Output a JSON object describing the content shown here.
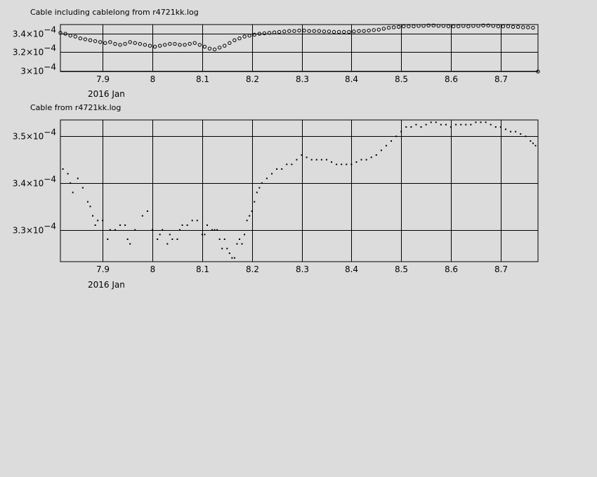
{
  "chart_data": [
    {
      "type": "scatter",
      "title": "Cable including cablelong from r4721kk.log",
      "xlabel": "2016 Jan",
      "ylabel": "",
      "xlim": [
        7.815,
        8.775
      ],
      "ylim": [
        0.000299,
        0.00035
      ],
      "grid": true,
      "x_ticks": [
        {
          "value": 7.9,
          "label": "7.9"
        },
        {
          "value": 8.0,
          "label": "8"
        },
        {
          "value": 8.1,
          "label": "8.1"
        },
        {
          "value": 8.2,
          "label": "8.2"
        },
        {
          "value": 8.3,
          "label": "8.3"
        },
        {
          "value": 8.4,
          "label": "8.4"
        },
        {
          "value": 8.5,
          "label": "8.5"
        },
        {
          "value": 8.6,
          "label": "8.6"
        },
        {
          "value": 8.7,
          "label": "8.7"
        }
      ],
      "y_ticks": [
        {
          "value": 0.0003,
          "mantissa": "3×10",
          "exponent": "−4"
        },
        {
          "value": 0.00032,
          "mantissa": "3.2×10",
          "exponent": "−4"
        },
        {
          "value": 0.00034,
          "mantissa": "3.4×10",
          "exponent": "−4"
        }
      ],
      "series": [
        {
          "marker": "open-circle",
          "points": [
            [
              7.815,
              0.000341
            ],
            [
              7.825,
              0.00034
            ],
            [
              7.835,
              0.000338
            ],
            [
              7.845,
              0.000337
            ],
            [
              7.855,
              0.000335
            ],
            [
              7.865,
              0.000334
            ],
            [
              7.875,
              0.000333
            ],
            [
              7.885,
              0.000332
            ],
            [
              7.895,
              0.000331
            ],
            [
              7.905,
              0.00033
            ],
            [
              7.915,
              0.000331
            ],
            [
              7.925,
              0.000329
            ],
            [
              7.935,
              0.000328
            ],
            [
              7.945,
              0.000329
            ],
            [
              7.955,
              0.000331
            ],
            [
              7.965,
              0.00033
            ],
            [
              7.975,
              0.000329
            ],
            [
              7.985,
              0.000328
            ],
            [
              7.995,
              0.000327
            ],
            [
              8.005,
              0.000326
            ],
            [
              8.015,
              0.000327
            ],
            [
              8.025,
              0.000328
            ],
            [
              8.035,
              0.000329
            ],
            [
              8.045,
              0.000329
            ],
            [
              8.055,
              0.000328
            ],
            [
              8.065,
              0.000328
            ],
            [
              8.075,
              0.000329
            ],
            [
              8.085,
              0.00033
            ],
            [
              8.095,
              0.000328
            ],
            [
              8.105,
              0.000326
            ],
            [
              8.115,
              0.000324
            ],
            [
              8.125,
              0.000323
            ],
            [
              8.135,
              0.000325
            ],
            [
              8.145,
              0.000327
            ],
            [
              8.155,
              0.00033
            ],
            [
              8.165,
              0.000333
            ],
            [
              8.175,
              0.000335
            ],
            [
              8.185,
              0.000337
            ],
            [
              8.195,
              0.000338
            ],
            [
              8.205,
              0.000339
            ],
            [
              8.215,
              0.00034
            ],
            [
              8.225,
              0.0003405
            ],
            [
              8.235,
              0.000341
            ],
            [
              8.245,
              0.0003415
            ],
            [
              8.255,
              0.000342
            ],
            [
              8.265,
              0.0003425
            ],
            [
              8.275,
              0.000343
            ],
            [
              8.285,
              0.000343
            ],
            [
              8.295,
              0.0003435
            ],
            [
              8.305,
              0.0003435
            ],
            [
              8.315,
              0.000343
            ],
            [
              8.325,
              0.000343
            ],
            [
              8.335,
              0.000343
            ],
            [
              8.345,
              0.0003425
            ],
            [
              8.355,
              0.0003425
            ],
            [
              8.365,
              0.000342
            ],
            [
              8.375,
              0.000342
            ],
            [
              8.385,
              0.000342
            ],
            [
              8.395,
              0.000342
            ],
            [
              8.405,
              0.0003425
            ],
            [
              8.415,
              0.000343
            ],
            [
              8.425,
              0.000343
            ],
            [
              8.435,
              0.0003435
            ],
            [
              8.445,
              0.000344
            ],
            [
              8.455,
              0.0003445
            ],
            [
              8.465,
              0.0003455
            ],
            [
              8.475,
              0.0003465
            ],
            [
              8.485,
              0.000347
            ],
            [
              8.495,
              0.0003475
            ],
            [
              8.505,
              0.000348
            ],
            [
              8.515,
              0.000348
            ],
            [
              8.525,
              0.000348
            ],
            [
              8.535,
              0.0003485
            ],
            [
              8.545,
              0.0003485
            ],
            [
              8.555,
              0.000349
            ],
            [
              8.565,
              0.000349
            ],
            [
              8.575,
              0.0003485
            ],
            [
              8.585,
              0.0003485
            ],
            [
              8.595,
              0.000348
            ],
            [
              8.605,
              0.000348
            ],
            [
              8.615,
              0.000348
            ],
            [
              8.625,
              0.0003485
            ],
            [
              8.635,
              0.000348
            ],
            [
              8.645,
              0.0003485
            ],
            [
              8.655,
              0.0003485
            ],
            [
              8.665,
              0.000349
            ],
            [
              8.675,
              0.000349
            ],
            [
              8.685,
              0.0003485
            ],
            [
              8.695,
              0.000348
            ],
            [
              8.705,
              0.000348
            ],
            [
              8.715,
              0.000348
            ],
            [
              8.725,
              0.0003475
            ],
            [
              8.735,
              0.0003475
            ],
            [
              8.745,
              0.000347
            ],
            [
              8.755,
              0.000347
            ],
            [
              8.765,
              0.0003465
            ],
            [
              8.775,
              0.000299
            ]
          ]
        }
      ]
    },
    {
      "type": "scatter",
      "title": "Cable from r4721kk.log",
      "xlabel": "2016 Jan",
      "ylabel": "",
      "xlim": [
        7.815,
        8.775
      ],
      "ylim": [
        0.0003232,
        0.0003535
      ],
      "grid": true,
      "x_ticks": [
        {
          "value": 7.9,
          "label": "7.9"
        },
        {
          "value": 8.0,
          "label": "8"
        },
        {
          "value": 8.1,
          "label": "8.1"
        },
        {
          "value": 8.2,
          "label": "8.2"
        },
        {
          "value": 8.3,
          "label": "8.3"
        },
        {
          "value": 8.4,
          "label": "8.4"
        },
        {
          "value": 8.5,
          "label": "8.5"
        },
        {
          "value": 8.6,
          "label": "8.6"
        },
        {
          "value": 8.7,
          "label": "8.7"
        }
      ],
      "y_ticks": [
        {
          "value": 0.00033,
          "mantissa": "3.3×10",
          "exponent": "−4"
        },
        {
          "value": 0.00034,
          "mantissa": "3.4×10",
          "exponent": "−4"
        },
        {
          "value": 0.00035,
          "mantissa": "3.5×10",
          "exponent": "−4"
        }
      ],
      "series": [
        {
          "marker": "dot",
          "points": [
            [
              7.82,
              0.000343
            ],
            [
              7.83,
              0.000342
            ],
            [
              7.835,
              0.00034
            ],
            [
              7.84,
              0.000338
            ],
            [
              7.85,
              0.000341
            ],
            [
              7.86,
              0.000339
            ],
            [
              7.87,
              0.000336
            ],
            [
              7.875,
              0.000335
            ],
            [
              7.88,
              0.000333
            ],
            [
              7.885,
              0.000331
            ],
            [
              7.89,
              0.000332
            ],
            [
              7.9,
              0.000332
            ],
            [
              7.91,
              0.000328
            ],
            [
              7.915,
              0.00033
            ],
            [
              7.925,
              0.00033
            ],
            [
              7.935,
              0.000331
            ],
            [
              7.945,
              0.000331
            ],
            [
              7.95,
              0.000328
            ],
            [
              7.955,
              0.000327
            ],
            [
              7.965,
              0.00033
            ],
            [
              7.98,
              0.000333
            ],
            [
              7.99,
              0.000334
            ],
            [
              8.0,
              0.00033
            ],
            [
              8.01,
              0.000328
            ],
            [
              8.015,
              0.000329
            ],
            [
              8.02,
              0.00033
            ],
            [
              8.03,
              0.000327
            ],
            [
              8.035,
              0.000329
            ],
            [
              8.04,
              0.000328
            ],
            [
              8.05,
              0.000328
            ],
            [
              8.055,
              0.00033
            ],
            [
              8.06,
              0.000331
            ],
            [
              8.07,
              0.000331
            ],
            [
              8.08,
              0.000332
            ],
            [
              8.09,
              0.000332
            ],
            [
              8.1,
              0.000329
            ],
            [
              8.105,
              0.000329
            ],
            [
              8.11,
              0.000331
            ],
            [
              8.12,
              0.00033
            ],
            [
              8.125,
              0.00033
            ],
            [
              8.13,
              0.00033
            ],
            [
              8.135,
              0.000328
            ],
            [
              8.14,
              0.000326
            ],
            [
              8.145,
              0.000328
            ],
            [
              8.15,
              0.000326
            ],
            [
              8.155,
              0.000325
            ],
            [
              8.16,
              0.000324
            ],
            [
              8.165,
              0.000324
            ],
            [
              8.17,
              0.000327
            ],
            [
              8.175,
              0.000328
            ],
            [
              8.18,
              0.000327
            ],
            [
              8.185,
              0.000329
            ],
            [
              8.19,
              0.000332
            ],
            [
              8.195,
              0.000333
            ],
            [
              8.2,
              0.000334
            ],
            [
              8.205,
              0.000336
            ],
            [
              8.21,
              0.000338
            ],
            [
              8.215,
              0.000339
            ],
            [
              8.22,
              0.00034
            ],
            [
              8.23,
              0.000341
            ],
            [
              8.24,
              0.000342
            ],
            [
              8.25,
              0.000343
            ],
            [
              8.26,
              0.000343
            ],
            [
              8.27,
              0.000344
            ],
            [
              8.28,
              0.000344
            ],
            [
              8.29,
              0.000345
            ],
            [
              8.3,
              0.000346
            ],
            [
              8.31,
              0.0003455
            ],
            [
              8.32,
              0.000345
            ],
            [
              8.33,
              0.000345
            ],
            [
              8.34,
              0.000345
            ],
            [
              8.35,
              0.000345
            ],
            [
              8.36,
              0.0003445
            ],
            [
              8.37,
              0.000344
            ],
            [
              8.38,
              0.000344
            ],
            [
              8.39,
              0.000344
            ],
            [
              8.4,
              0.000344
            ],
            [
              8.41,
              0.0003445
            ],
            [
              8.42,
              0.000345
            ],
            [
              8.43,
              0.000345
            ],
            [
              8.44,
              0.0003455
            ],
            [
              8.45,
              0.000346
            ],
            [
              8.46,
              0.000347
            ],
            [
              8.47,
              0.000348
            ],
            [
              8.48,
              0.000349
            ],
            [
              8.49,
              0.00035
            ],
            [
              8.5,
              0.000351
            ],
            [
              8.51,
              0.000352
            ],
            [
              8.52,
              0.000352
            ],
            [
              8.53,
              0.0003525
            ],
            [
              8.54,
              0.000352
            ],
            [
              8.55,
              0.0003525
            ],
            [
              8.56,
              0.000353
            ],
            [
              8.57,
              0.000353
            ],
            [
              8.58,
              0.0003525
            ],
            [
              8.59,
              0.0003525
            ],
            [
              8.6,
              0.000352
            ],
            [
              8.61,
              0.0003525
            ],
            [
              8.62,
              0.0003525
            ],
            [
              8.63,
              0.0003525
            ],
            [
              8.64,
              0.0003525
            ],
            [
              8.65,
              0.000353
            ],
            [
              8.66,
              0.000353
            ],
            [
              8.67,
              0.000353
            ],
            [
              8.68,
              0.0003525
            ],
            [
              8.69,
              0.000352
            ],
            [
              8.7,
              0.000352
            ],
            [
              8.71,
              0.0003515
            ],
            [
              8.72,
              0.000351
            ],
            [
              8.73,
              0.000351
            ],
            [
              8.74,
              0.0003505
            ],
            [
              8.75,
              0.00035
            ],
            [
              8.76,
              0.000349
            ],
            [
              8.765,
              0.0003485
            ],
            [
              8.77,
              0.000348
            ]
          ]
        }
      ]
    }
  ]
}
